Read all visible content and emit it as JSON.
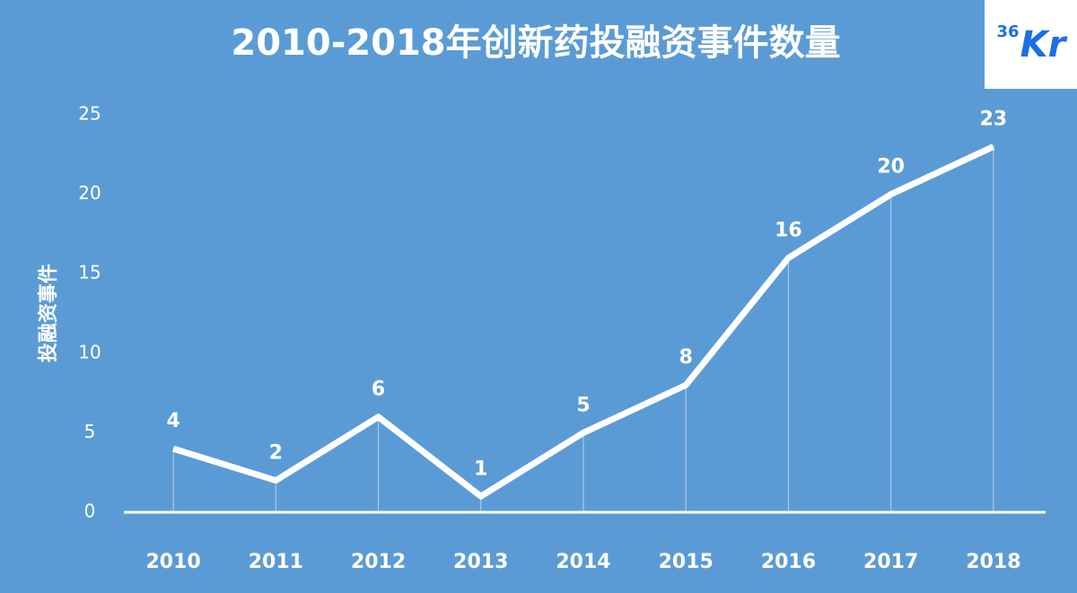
{
  "logo": {
    "superscript": "36",
    "text": "Kr"
  },
  "chart_data": {
    "type": "line",
    "title": "2010-2018年创新药投融资事件数量",
    "y_label": "投融资事件",
    "categories": [
      "2010",
      "2011",
      "2012",
      "2013",
      "2014",
      "2015",
      "2016",
      "2017",
      "2018"
    ],
    "values": [
      4,
      2,
      6,
      1,
      5,
      8,
      16,
      20,
      23
    ],
    "color": "#ffffff",
    "ylim": [
      0,
      25
    ],
    "yticks": [
      0,
      5,
      10,
      15,
      20,
      25
    ],
    "drop_lines": true,
    "data_labels": true
  }
}
